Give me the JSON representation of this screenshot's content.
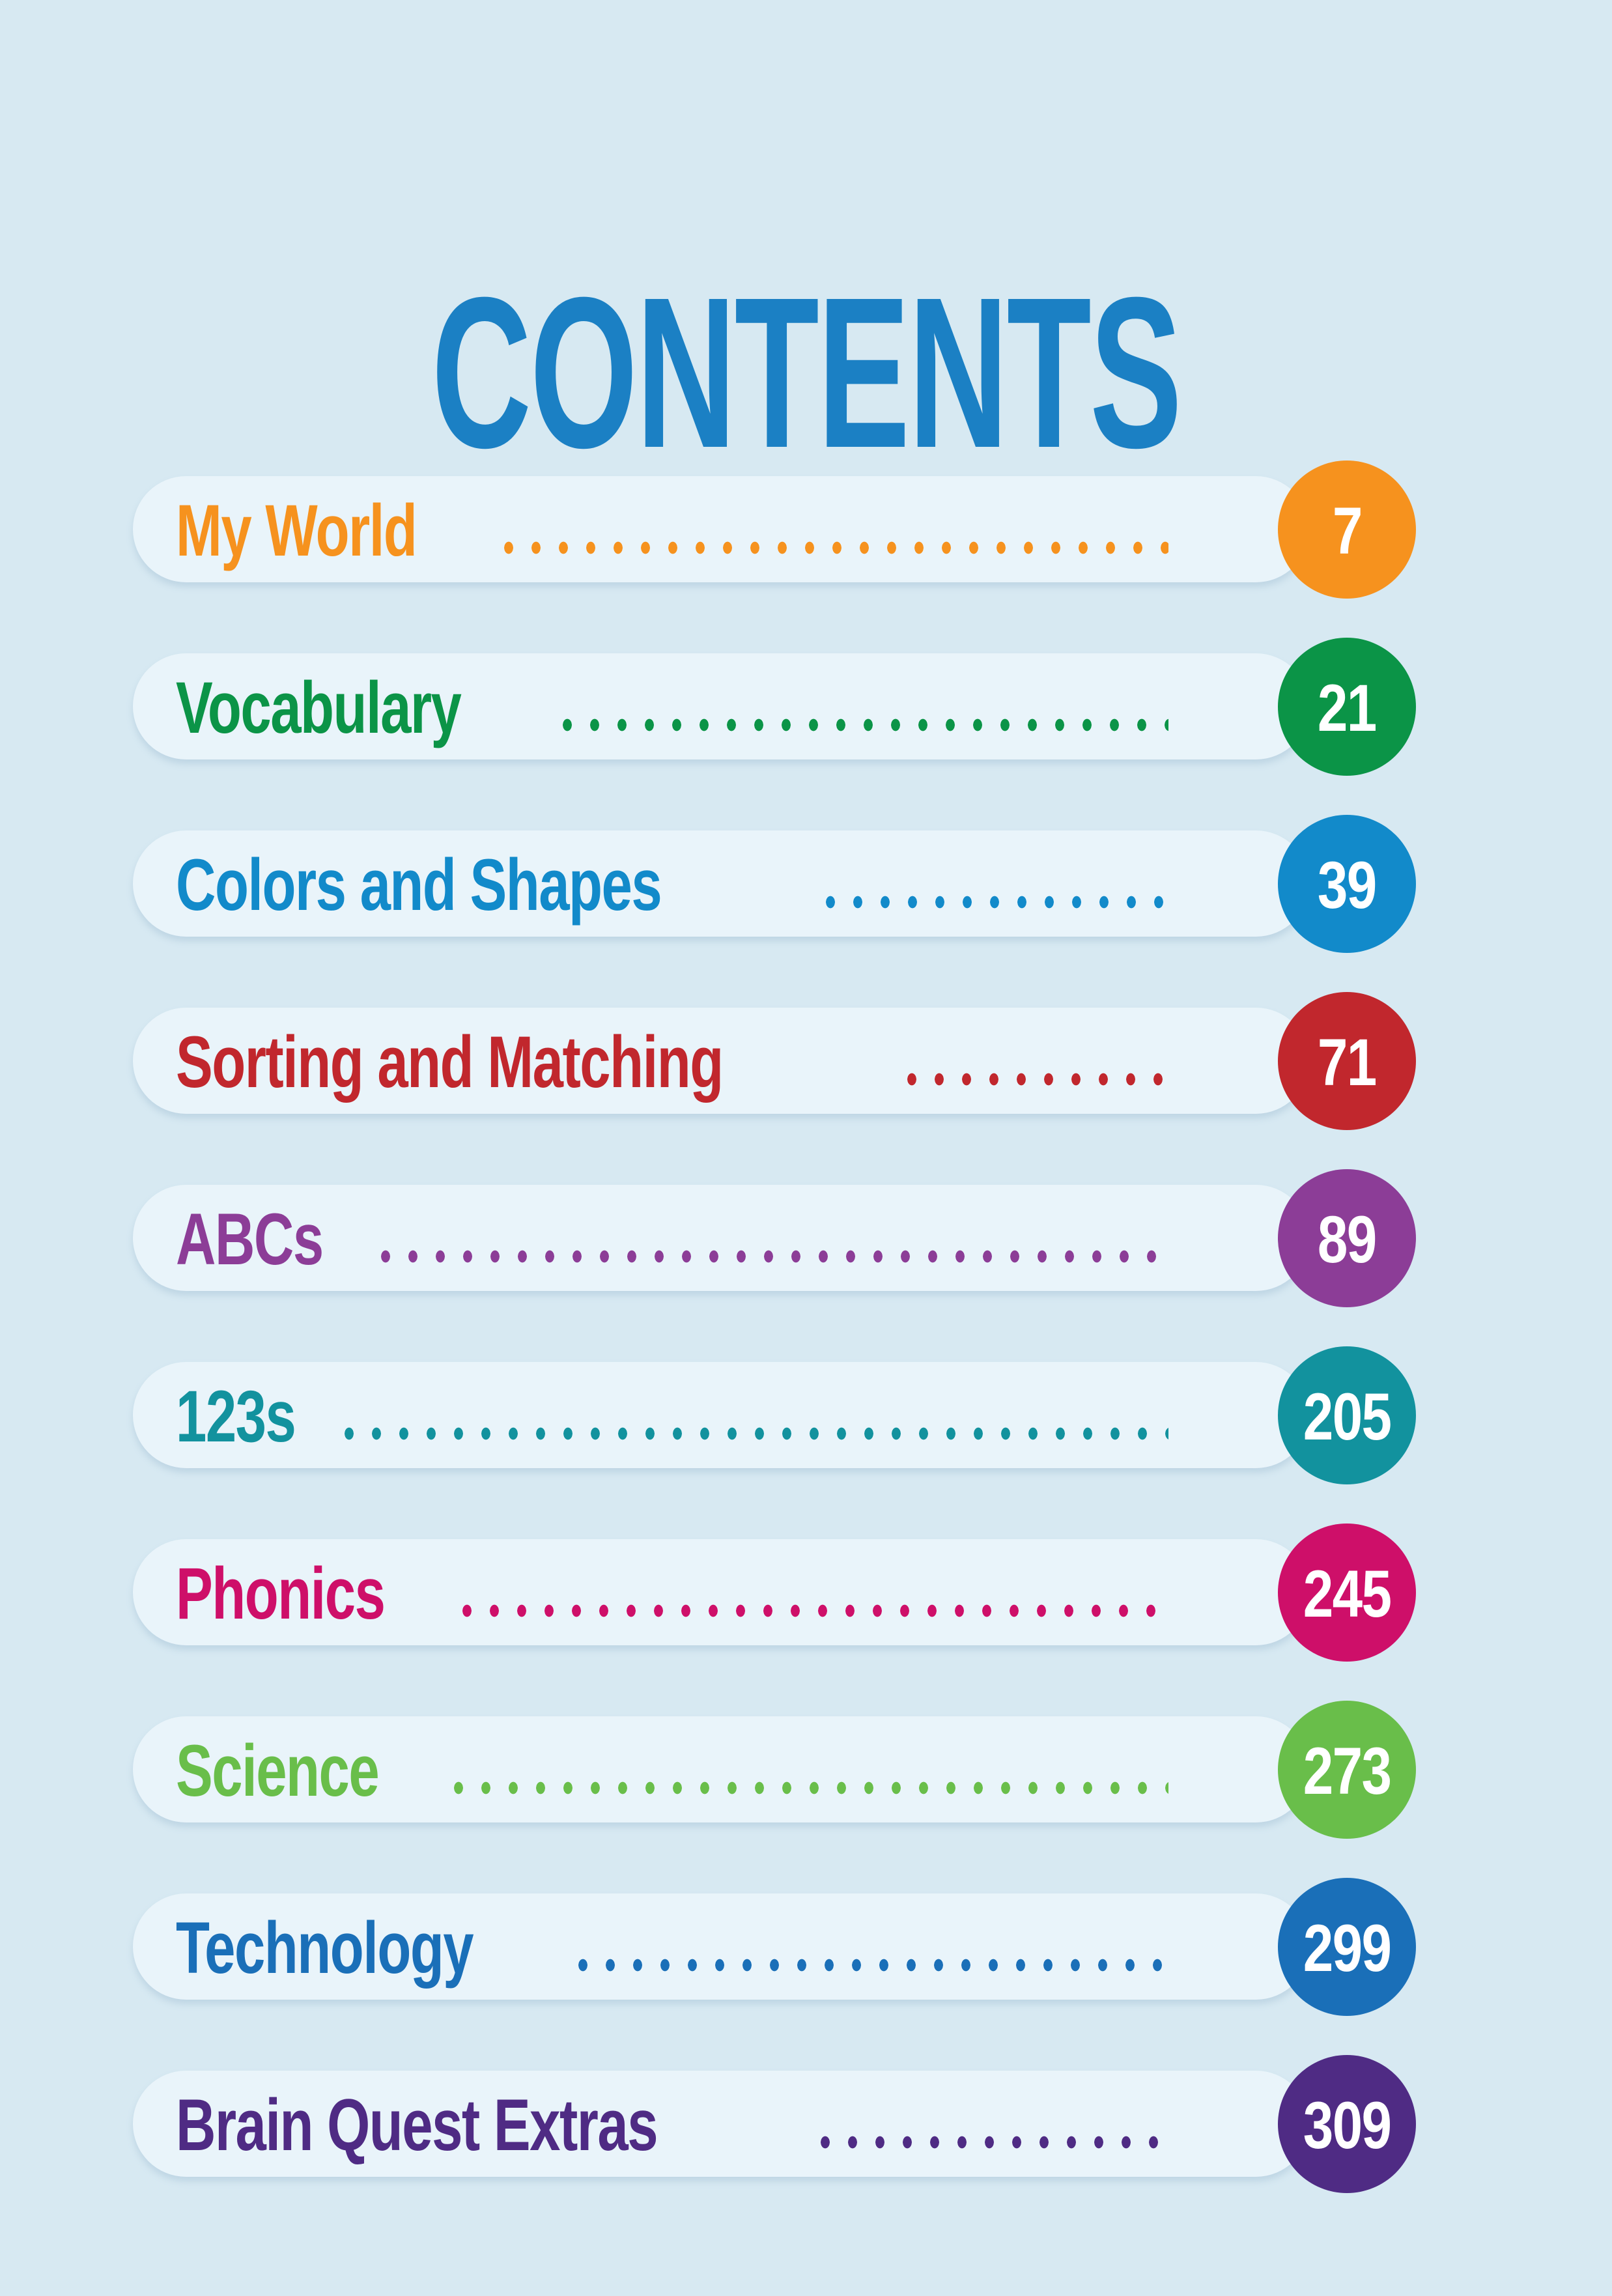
{
  "page": {
    "title": "CONTENTS",
    "background_color": "#D7E9F2",
    "pill_color": "#E9F4FA",
    "title_color": "#1B80C4"
  },
  "toc": {
    "entries": [
      {
        "label": "My World",
        "page": "7",
        "color": "#F6921E"
      },
      {
        "label": "Vocabulary",
        "page": "21",
        "color": "#0B9447"
      },
      {
        "label": "Colors and Shapes",
        "page": "39",
        "color": "#128ACA"
      },
      {
        "label": "Sorting and Matching",
        "page": "71",
        "color": "#C1272D"
      },
      {
        "label": "ABCs",
        "page": "89",
        "color": "#8C3D97"
      },
      {
        "label": "123s",
        "page": "205",
        "color": "#12929E"
      },
      {
        "label": "Phonics",
        "page": "245",
        "color": "#CE0F69"
      },
      {
        "label": "Science",
        "page": "273",
        "color": "#69BE4A"
      },
      {
        "label": "Technology",
        "page": "299",
        "color": "#1A6FB8"
      },
      {
        "label": "Brain Quest Extras",
        "page": "309",
        "color": "#4F2B84"
      }
    ]
  }
}
